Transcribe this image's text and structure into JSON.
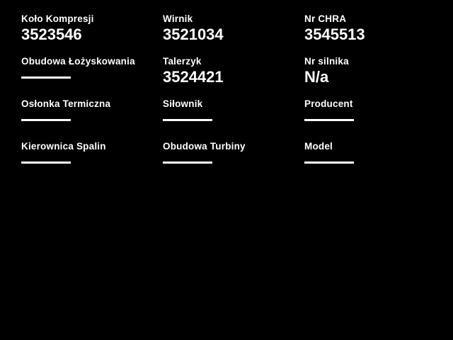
{
  "colors": {
    "background": "#000000",
    "text": "#ffffff",
    "empty_line": "#ffffff"
  },
  "fields": [
    {
      "label": "Koło Kompresji",
      "value": "3523546",
      "empty": false
    },
    {
      "label": "Wirnik",
      "value": "3521034",
      "empty": false
    },
    {
      "label": "Nr CHRA",
      "value": "3545513",
      "empty": false
    },
    {
      "label": "Obudowa Łożyskowania",
      "value": "",
      "empty": true
    },
    {
      "label": "Talerzyk",
      "value": "3524421",
      "empty": false
    },
    {
      "label": "Nr silnika",
      "value": "N/a",
      "empty": false
    },
    {
      "label": "Osłonka Termiczna",
      "value": "",
      "empty": true
    },
    {
      "label": "Siłownik",
      "value": "",
      "empty": true
    },
    {
      "label": "Producent",
      "value": "",
      "empty": true
    },
    {
      "label": "Kierownica Spalin",
      "value": "",
      "empty": true
    },
    {
      "label": "Obudowa Turbiny",
      "value": "",
      "empty": true
    },
    {
      "label": "Model",
      "value": "",
      "empty": true
    }
  ]
}
